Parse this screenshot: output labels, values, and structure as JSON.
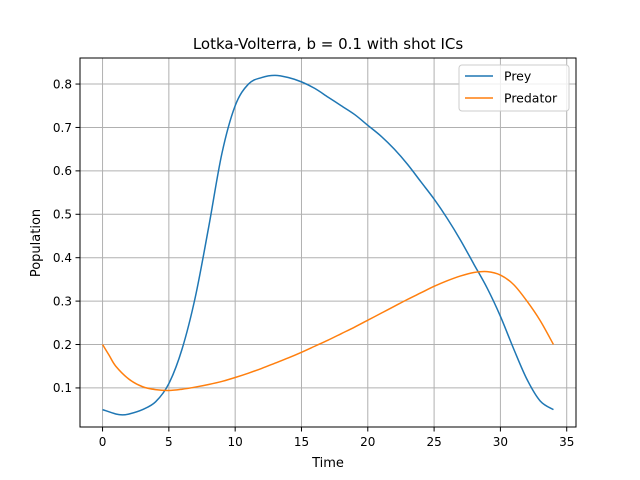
{
  "chart_data": {
    "type": "line",
    "title": "Lotka-Volterra, b = 0.1 with shot ICs",
    "xlabel": "Time",
    "ylabel": "Population",
    "xlim": [
      -1.7,
      35.7
    ],
    "ylim": [
      0.01,
      0.86
    ],
    "xticks": [
      0,
      5,
      10,
      15,
      20,
      25,
      30,
      35
    ],
    "yticks": [
      0.1,
      0.2,
      0.3,
      0.4,
      0.5,
      0.6,
      0.7,
      0.8
    ],
    "xtick_labels": [
      "0",
      "5",
      "10",
      "15",
      "20",
      "25",
      "30",
      "35"
    ],
    "ytick_labels": [
      "0.1",
      "0.2",
      "0.3",
      "0.4",
      "0.5",
      "0.6",
      "0.7",
      "0.8"
    ],
    "grid": true,
    "legend_position": "top-right",
    "series": [
      {
        "name": "Prey",
        "color": "#1f77b4",
        "x": [
          0,
          1,
          1.5,
          2,
          3,
          4,
          5,
          6,
          7,
          8,
          9,
          10,
          11,
          12,
          13,
          14,
          15,
          16,
          17,
          18,
          19,
          20,
          21,
          22,
          23,
          24,
          25,
          26,
          27,
          28,
          29,
          30,
          31,
          32,
          33,
          34
        ],
        "y": [
          0.05,
          0.04,
          0.038,
          0.04,
          0.05,
          0.068,
          0.11,
          0.19,
          0.31,
          0.47,
          0.64,
          0.75,
          0.8,
          0.815,
          0.82,
          0.815,
          0.805,
          0.79,
          0.77,
          0.75,
          0.73,
          0.705,
          0.68,
          0.65,
          0.615,
          0.575,
          0.535,
          0.49,
          0.44,
          0.385,
          0.33,
          0.265,
          0.19,
          0.12,
          0.07,
          0.05
        ]
      },
      {
        "name": "Predator",
        "color": "#ff7f0e",
        "x": [
          0,
          0.5,
          1,
          2,
          3,
          4,
          5,
          6,
          7,
          8,
          9,
          10,
          11,
          12,
          13,
          14,
          15,
          16,
          17,
          18,
          19,
          20,
          21,
          22,
          23,
          24,
          25,
          26,
          27,
          28,
          29,
          30,
          31,
          32,
          33,
          34
        ],
        "y": [
          0.2,
          0.175,
          0.15,
          0.12,
          0.103,
          0.096,
          0.094,
          0.097,
          0.102,
          0.108,
          0.115,
          0.124,
          0.134,
          0.145,
          0.157,
          0.169,
          0.182,
          0.196,
          0.21,
          0.225,
          0.24,
          0.256,
          0.272,
          0.288,
          0.304,
          0.319,
          0.334,
          0.347,
          0.358,
          0.366,
          0.368,
          0.36,
          0.338,
          0.3,
          0.255,
          0.2
        ]
      }
    ]
  }
}
